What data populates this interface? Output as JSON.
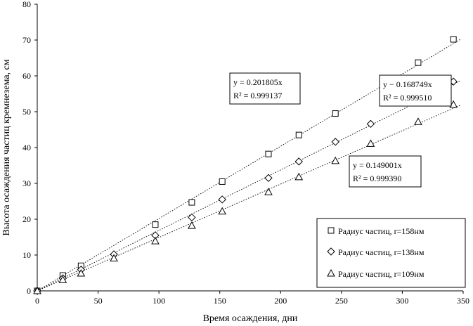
{
  "chart_data": {
    "type": "scatter",
    "xlabel": "Время осаждения, дни",
    "ylabel": "Высота осаждения частиц кремнезема, см",
    "xlim": [
      0,
      350
    ],
    "ylim": [
      0,
      80
    ],
    "xticks": [
      "0",
      "50",
      "100",
      "150",
      "200",
      "250",
      "300",
      "350"
    ],
    "yticks": [
      "0",
      "10",
      "20",
      "30",
      "40",
      "50",
      "60",
      "70",
      "80"
    ],
    "grid": false,
    "legend_position": "bottom-right",
    "series": [
      {
        "name": "Радиус частиц, r=158нм",
        "marker": "square",
        "points": [
          [
            0,
            0
          ],
          [
            21,
            4.3
          ],
          [
            36,
            7
          ],
          [
            97,
            18.5
          ],
          [
            127,
            24.7
          ],
          [
            152,
            30.5
          ],
          [
            190,
            38.2
          ],
          [
            215,
            43.5
          ],
          [
            245,
            49.5
          ],
          [
            313,
            63.7
          ],
          [
            342,
            70.2
          ]
        ],
        "trendline": {
          "slope": 0.201805,
          "equation": "y = 0.201805x",
          "r2": "R² = 0.999137"
        }
      },
      {
        "name": "Радиус частиц, r=138нм",
        "marker": "diamond",
        "points": [
          [
            0,
            0
          ],
          [
            21,
            3.5
          ],
          [
            36,
            5.9
          ],
          [
            63,
            10.2
          ],
          [
            97,
            15.5
          ],
          [
            127,
            20.5
          ],
          [
            152,
            25.5
          ],
          [
            190,
            31.5
          ],
          [
            215,
            36.1
          ],
          [
            245,
            41.6
          ],
          [
            274,
            46.6
          ],
          [
            342,
            58.4
          ]
        ],
        "trendline": {
          "slope": 0.168749,
          "equation": "y − 0.168749x",
          "r2": "R² = 0.999510"
        }
      },
      {
        "name": "Радиус частиц, r=109нм",
        "marker": "triangle",
        "points": [
          [
            0,
            0
          ],
          [
            21,
            3.1
          ],
          [
            36,
            4.9
          ],
          [
            63,
            9.1
          ],
          [
            97,
            13.9
          ],
          [
            127,
            18.2
          ],
          [
            152,
            22.2
          ],
          [
            190,
            27.6
          ],
          [
            215,
            31.8
          ],
          [
            245,
            36.3
          ],
          [
            274,
            41.1
          ],
          [
            313,
            47.2
          ],
          [
            342,
            52
          ]
        ],
        "trendline": {
          "slope": 0.149001,
          "equation": "y = 0.149001x",
          "r2": "R² = 0.999390"
        }
      }
    ]
  }
}
